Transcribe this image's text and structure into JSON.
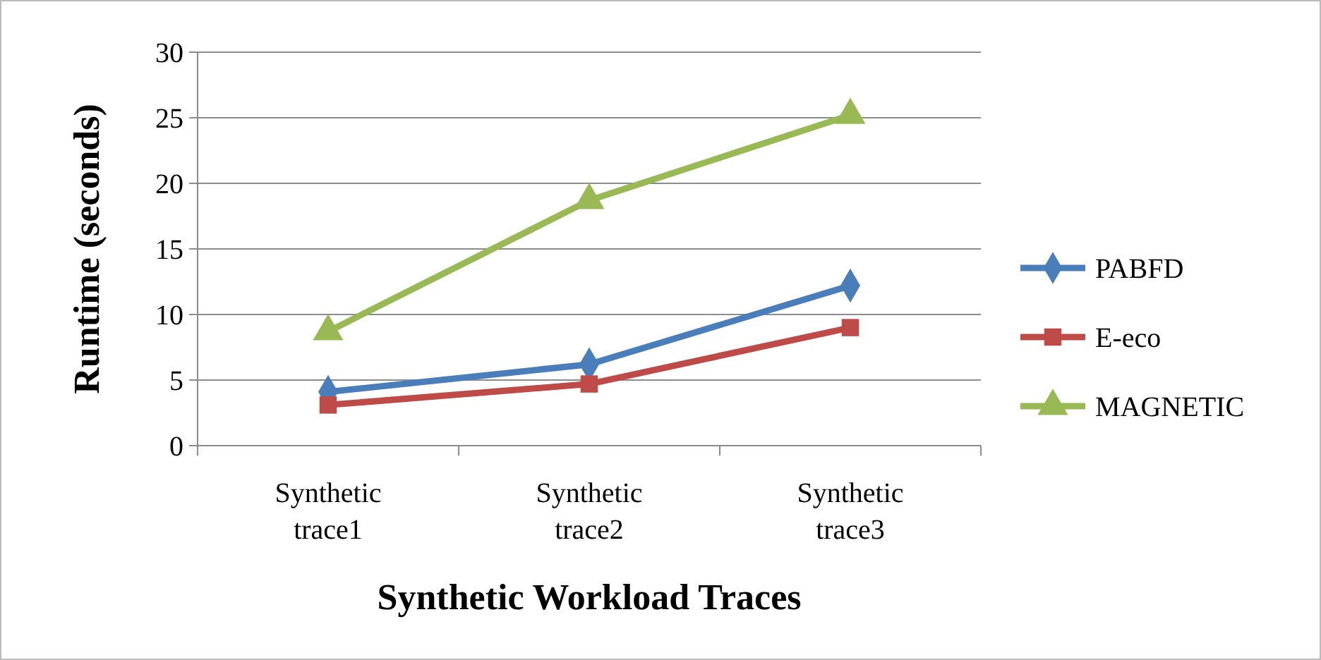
{
  "chart_data": {
    "type": "line",
    "xlabel": "Synthetic Workload Traces",
    "ylabel": "Runtime (seconds)",
    "categories": [
      "Synthetic trace1",
      "Synthetic trace2",
      "Synthetic trace3"
    ],
    "ylim": [
      0,
      30
    ],
    "yticks": [
      0,
      5,
      10,
      15,
      20,
      25,
      30
    ],
    "grid": "y",
    "legend": "right",
    "line_style": "solid",
    "series": [
      {
        "name": "PABFD",
        "color": "#4a7ebb",
        "marker": "diamond",
        "values": [
          4.1,
          6.2,
          12.2
        ]
      },
      {
        "name": "E-eco",
        "color": "#be4b48",
        "marker": "square",
        "values": [
          3.1,
          4.7,
          9.0
        ]
      },
      {
        "name": "MAGNETIC",
        "color": "#98b954",
        "marker": "triangle",
        "values": [
          8.7,
          18.7,
          25.2
        ]
      }
    ]
  }
}
